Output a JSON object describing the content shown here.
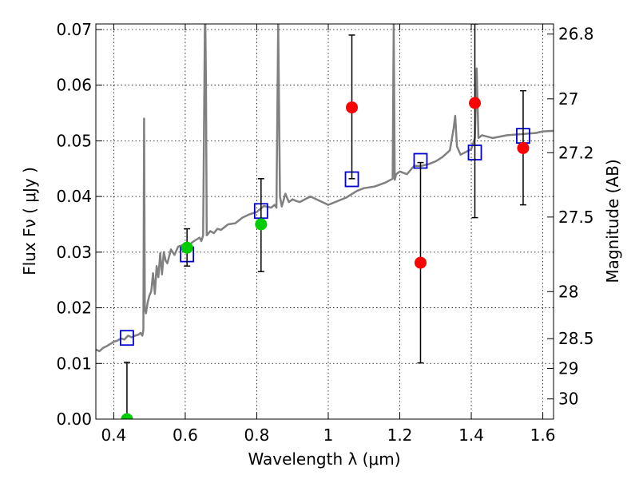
{
  "chart_data": {
    "type": "scatter",
    "title": "",
    "xlabel": "Wavelength  λ (μm)",
    "ylabel": "Flux  Fν  ( μJy )",
    "y2label": "Magnitude (AB)",
    "xlim": [
      0.35,
      1.63
    ],
    "ylim": [
      0.0,
      0.071
    ],
    "grid": true,
    "legend": "none",
    "x_ticks": [
      "0.4",
      "0.6",
      "0.8",
      "1",
      "1.2",
      "1.4",
      "1.6"
    ],
    "y_ticks": [
      "0.00",
      "0.01",
      "0.02",
      "0.03",
      "0.04",
      "0.05",
      "0.06",
      "0.07"
    ],
    "y2_ticks": [
      {
        "label": "26.8",
        "mag": 26.8
      },
      {
        "label": "27",
        "mag": 27.0
      },
      {
        "label": "27.2",
        "mag": 27.2
      },
      {
        "label": "27.5",
        "mag": 27.5
      },
      {
        "label": "28",
        "mag": 28.0
      },
      {
        "label": "28.5",
        "mag": 28.5
      },
      {
        "label": "29",
        "mag": 29.0
      },
      {
        "label": "30",
        "mag": 30.0
      }
    ],
    "colors": {
      "spectrum": "#808080",
      "model_box": "#0000cc",
      "detection": "#00cc00",
      "measurement": "#ff0000",
      "errorbar": "#000000"
    },
    "spectrum": {
      "x": [
        0.35,
        0.36,
        0.37,
        0.38,
        0.39,
        0.4,
        0.41,
        0.42,
        0.43,
        0.44,
        0.45,
        0.46,
        0.47,
        0.475,
        0.48,
        0.483,
        0.485,
        0.487,
        0.49,
        0.495,
        0.5,
        0.505,
        0.51,
        0.515,
        0.52,
        0.525,
        0.53,
        0.535,
        0.54,
        0.545,
        0.55,
        0.56,
        0.57,
        0.58,
        0.59,
        0.6,
        0.61,
        0.62,
        0.63,
        0.64,
        0.645,
        0.65,
        0.655,
        0.656,
        0.658,
        0.66,
        0.67,
        0.68,
        0.69,
        0.7,
        0.72,
        0.74,
        0.76,
        0.78,
        0.8,
        0.82,
        0.84,
        0.85,
        0.855,
        0.86,
        0.865,
        0.87,
        0.88,
        0.89,
        0.9,
        0.91,
        0.92,
        0.95,
        1.0,
        1.05,
        1.08,
        1.1,
        1.13,
        1.16,
        1.18,
        1.183,
        1.186,
        1.19,
        1.2,
        1.22,
        1.24,
        1.26,
        1.28,
        1.3,
        1.32,
        1.34,
        1.35,
        1.355,
        1.36,
        1.37,
        1.4,
        1.41,
        1.415,
        1.42,
        1.43,
        1.46,
        1.5,
        1.54,
        1.58,
        1.6,
        1.63
      ],
      "y": [
        0.0125,
        0.0122,
        0.0128,
        0.0131,
        0.0135,
        0.0139,
        0.0141,
        0.0145,
        0.0143,
        0.015,
        0.0147,
        0.015,
        0.0152,
        0.0155,
        0.015,
        0.016,
        0.054,
        0.02,
        0.019,
        0.021,
        0.0222,
        0.023,
        0.0262,
        0.0225,
        0.0275,
        0.0255,
        0.0298,
        0.026,
        0.03,
        0.0285,
        0.028,
        0.0305,
        0.0295,
        0.031,
        0.0312,
        0.0315,
        0.0312,
        0.0318,
        0.0322,
        0.0326,
        0.032,
        0.033,
        0.071,
        0.072,
        0.06,
        0.033,
        0.0338,
        0.0334,
        0.0342,
        0.034,
        0.035,
        0.0352,
        0.0362,
        0.0368,
        0.0372,
        0.0383,
        0.038,
        0.0385,
        0.038,
        0.071,
        0.04,
        0.0382,
        0.0405,
        0.039,
        0.0395,
        0.0392,
        0.039,
        0.04,
        0.0385,
        0.0398,
        0.041,
        0.0415,
        0.0418,
        0.0425,
        0.0432,
        0.071,
        0.043,
        0.044,
        0.0445,
        0.044,
        0.0455,
        0.0455,
        0.0458,
        0.0463,
        0.0471,
        0.0483,
        0.052,
        0.0545,
        0.049,
        0.0475,
        0.0485,
        0.0505,
        0.063,
        0.0505,
        0.051,
        0.0505,
        0.051,
        0.0512,
        0.0514,
        0.0517,
        0.0518
      ]
    },
    "series": [
      {
        "marker": "open-square",
        "x": [
          0.437,
          0.605,
          0.812,
          1.066,
          1.258,
          1.41,
          1.545
        ],
        "y": [
          0.0146,
          0.0296,
          0.0374,
          0.0431,
          0.0464,
          0.0479,
          0.0509
        ]
      },
      {
        "marker": "filled-circle",
        "color": "green",
        "x": [
          0.437,
          0.605,
          0.812
        ],
        "y": [
          0.0,
          0.0308,
          0.035
        ],
        "err_low": [
          0.0,
          0.0275,
          0.0265
        ],
        "err_high": [
          0.0102,
          0.0342,
          0.0432
        ]
      },
      {
        "marker": "filled-circle",
        "color": "red",
        "x": [
          1.066,
          1.258,
          1.41,
          1.545
        ],
        "y": [
          0.056,
          0.0281,
          0.0568,
          0.0487
        ],
        "err_low": [
          0.0432,
          0.0101,
          0.0362,
          0.0385
        ],
        "err_high": [
          0.069,
          0.0461,
          0.071,
          0.059
        ]
      }
    ]
  }
}
